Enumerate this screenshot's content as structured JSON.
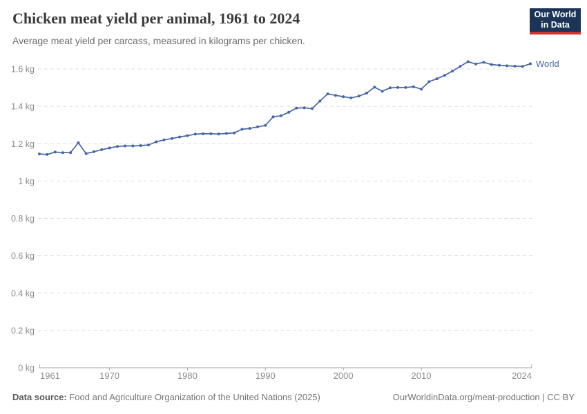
{
  "chart_data": {
    "type": "line",
    "title": "Chicken meat yield per animal, 1961 to 2024",
    "subtitle": "Average meat yield per carcass, measured in kilograms per chicken.",
    "unit": "kg",
    "x": [
      1961,
      1962,
      1963,
      1964,
      1965,
      1966,
      1967,
      1968,
      1969,
      1970,
      1971,
      1972,
      1973,
      1974,
      1975,
      1976,
      1977,
      1978,
      1979,
      1980,
      1981,
      1982,
      1983,
      1984,
      1985,
      1986,
      1987,
      1988,
      1989,
      1990,
      1991,
      1992,
      1993,
      1994,
      1995,
      1996,
      1997,
      1998,
      1999,
      2000,
      2001,
      2002,
      2003,
      2004,
      2005,
      2006,
      2007,
      2008,
      2009,
      2010,
      2011,
      2012,
      2013,
      2014,
      2015,
      2016,
      2017,
      2018,
      2019,
      2020,
      2021,
      2022,
      2023,
      2024
    ],
    "series": [
      {
        "name": "World",
        "values": [
          1.145,
          1.142,
          1.155,
          1.152,
          1.152,
          1.205,
          1.147,
          1.157,
          1.168,
          1.177,
          1.185,
          1.188,
          1.188,
          1.19,
          1.193,
          1.21,
          1.22,
          1.228,
          1.236,
          1.243,
          1.251,
          1.253,
          1.253,
          1.252,
          1.255,
          1.258,
          1.277,
          1.282,
          1.29,
          1.298,
          1.344,
          1.35,
          1.368,
          1.391,
          1.392,
          1.388,
          1.428,
          1.467,
          1.459,
          1.452,
          1.445,
          1.455,
          1.471,
          1.503,
          1.481,
          1.499,
          1.501,
          1.501,
          1.505,
          1.492,
          1.532,
          1.548,
          1.566,
          1.589,
          1.614,
          1.639,
          1.627,
          1.636,
          1.624,
          1.62,
          1.617,
          1.615,
          1.614,
          1.628
        ]
      }
    ],
    "xlabel": "",
    "ylabel": "",
    "ylim": [
      0,
      1.6
    ],
    "ytick_values": [
      0,
      0.2,
      0.4,
      0.6,
      0.8,
      1,
      1.2,
      1.4,
      1.6
    ],
    "ytick_labels": [
      "0 kg",
      "0.2 kg",
      "0.4 kg",
      "0.6 kg",
      "0.8 kg",
      "1 kg",
      "1.2 kg",
      "1.4 kg",
      "1.6 kg"
    ],
    "xtick_values": [
      1961,
      1970,
      1980,
      1990,
      2000,
      2010,
      2024
    ],
    "xtick_labels": [
      "1961",
      "1970",
      "1980",
      "1990",
      "2000",
      "2010",
      "2024"
    ],
    "grid": "horizontal-dashed",
    "legend_position": "line-end-label"
  },
  "logo": {
    "line1": "Our World",
    "line2": "in Data"
  },
  "footer": {
    "source_bold": "Data source:",
    "source_rest": " Food and Agriculture Organization of the United Nations (2025)",
    "license": "OurWorldinData.org/meat-production | CC BY"
  },
  "colors": {
    "series_blue": "#4566a5",
    "logo_navy": "#1b3458",
    "logo_red": "#cf352e",
    "grid": "#dedede",
    "axis": "#a5a5a5",
    "tick_text": "#8c8c8c",
    "title_text": "#3a3a3a",
    "subtitle_text": "#6b6b6b",
    "footer_text": "#757575"
  }
}
